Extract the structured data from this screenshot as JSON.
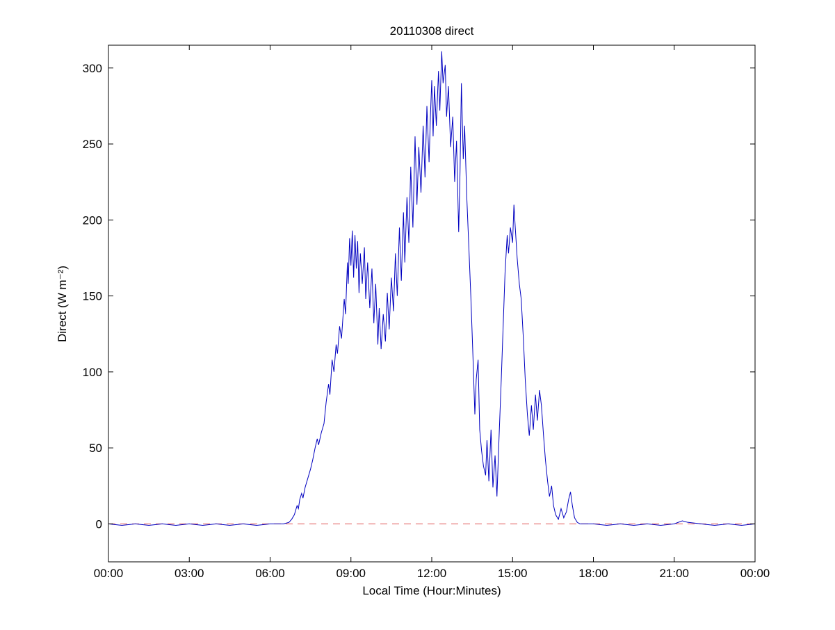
{
  "chart_data": {
    "type": "line",
    "title": "20110308 direct",
    "xlabel": "Local Time (Hour:Minutes)",
    "ylabel": "Direct (W m⁻²)",
    "xlim": [
      0,
      24
    ],
    "ylim": [
      -25,
      315
    ],
    "x_ticks": [
      0,
      3,
      6,
      9,
      12,
      15,
      18,
      21,
      24
    ],
    "x_tick_labels": [
      "00:00",
      "03:00",
      "06:00",
      "09:00",
      "12:00",
      "15:00",
      "18:00",
      "21:00",
      "00:00"
    ],
    "y_ticks": [
      0,
      50,
      100,
      150,
      200,
      250,
      300
    ],
    "y_tick_labels": [
      "0",
      "50",
      "100",
      "150",
      "200",
      "250",
      "300"
    ],
    "grid": false,
    "legend": "none",
    "series": [
      {
        "name": "zero-reference",
        "color": "#e05555",
        "dash": true,
        "points": [
          [
            0,
            0
          ],
          [
            24,
            0
          ]
        ]
      },
      {
        "name": "direct-irradiance",
        "color": "#0000c0",
        "dash": false,
        "points": [
          [
            0,
            0
          ],
          [
            0.5,
            -1
          ],
          [
            1,
            0
          ],
          [
            1.5,
            -1
          ],
          [
            2,
            0
          ],
          [
            2.5,
            -1
          ],
          [
            3,
            0
          ],
          [
            3.5,
            -1
          ],
          [
            4,
            0
          ],
          [
            4.5,
            -1
          ],
          [
            5,
            0
          ],
          [
            5.5,
            -1
          ],
          [
            6,
            0
          ],
          [
            6.5,
            0
          ],
          [
            6.7,
            1
          ],
          [
            6.8,
            3
          ],
          [
            6.9,
            6
          ],
          [
            7.0,
            12
          ],
          [
            7.05,
            10
          ],
          [
            7.1,
            16
          ],
          [
            7.17,
            20
          ],
          [
            7.22,
            17
          ],
          [
            7.3,
            24
          ],
          [
            7.4,
            30
          ],
          [
            7.5,
            36
          ],
          [
            7.58,
            42
          ],
          [
            7.67,
            50
          ],
          [
            7.75,
            56
          ],
          [
            7.8,
            52
          ],
          [
            7.9,
            60
          ],
          [
            8.0,
            66
          ],
          [
            8.08,
            80
          ],
          [
            8.17,
            92
          ],
          [
            8.22,
            85
          ],
          [
            8.3,
            108
          ],
          [
            8.37,
            100
          ],
          [
            8.45,
            118
          ],
          [
            8.5,
            112
          ],
          [
            8.58,
            130
          ],
          [
            8.65,
            122
          ],
          [
            8.75,
            148
          ],
          [
            8.8,
            138
          ],
          [
            8.87,
            172
          ],
          [
            8.9,
            158
          ],
          [
            8.95,
            188
          ],
          [
            9.0,
            170
          ],
          [
            9.05,
            193
          ],
          [
            9.1,
            162
          ],
          [
            9.15,
            190
          ],
          [
            9.2,
            168
          ],
          [
            9.25,
            186
          ],
          [
            9.3,
            152
          ],
          [
            9.35,
            178
          ],
          [
            9.42,
            158
          ],
          [
            9.5,
            182
          ],
          [
            9.55,
            148
          ],
          [
            9.62,
            172
          ],
          [
            9.7,
            142
          ],
          [
            9.78,
            168
          ],
          [
            9.85,
            132
          ],
          [
            9.92,
            158
          ],
          [
            10.0,
            118
          ],
          [
            10.05,
            142
          ],
          [
            10.12,
            115
          ],
          [
            10.2,
            138
          ],
          [
            10.28,
            120
          ],
          [
            10.35,
            152
          ],
          [
            10.42,
            128
          ],
          [
            10.5,
            162
          ],
          [
            10.58,
            140
          ],
          [
            10.65,
            178
          ],
          [
            10.72,
            150
          ],
          [
            10.8,
            195
          ],
          [
            10.87,
            160
          ],
          [
            10.95,
            205
          ],
          [
            11.0,
            172
          ],
          [
            11.08,
            215
          ],
          [
            11.15,
            185
          ],
          [
            11.22,
            235
          ],
          [
            11.3,
            195
          ],
          [
            11.38,
            255
          ],
          [
            11.45,
            210
          ],
          [
            11.52,
            248
          ],
          [
            11.6,
            218
          ],
          [
            11.68,
            262
          ],
          [
            11.75,
            228
          ],
          [
            11.82,
            275
          ],
          [
            11.9,
            238
          ],
          [
            11.95,
            268
          ],
          [
            12.0,
            292
          ],
          [
            12.05,
            255
          ],
          [
            12.1,
            288
          ],
          [
            12.17,
            262
          ],
          [
            12.25,
            298
          ],
          [
            12.3,
            272
          ],
          [
            12.37,
            311
          ],
          [
            12.42,
            290
          ],
          [
            12.5,
            302
          ],
          [
            12.55,
            268
          ],
          [
            12.62,
            288
          ],
          [
            12.7,
            248
          ],
          [
            12.78,
            268
          ],
          [
            12.85,
            225
          ],
          [
            12.92,
            252
          ],
          [
            13.0,
            192
          ],
          [
            13.05,
            232
          ],
          [
            13.1,
            290
          ],
          [
            13.17,
            240
          ],
          [
            13.22,
            262
          ],
          [
            13.3,
            215
          ],
          [
            13.37,
            185
          ],
          [
            13.45,
            150
          ],
          [
            13.52,
            115
          ],
          [
            13.6,
            72
          ],
          [
            13.65,
            95
          ],
          [
            13.72,
            108
          ],
          [
            13.78,
            62
          ],
          [
            13.85,
            48
          ],
          [
            13.92,
            38
          ],
          [
            14.0,
            32
          ],
          [
            14.05,
            55
          ],
          [
            14.12,
            28
          ],
          [
            14.2,
            62
          ],
          [
            14.27,
            24
          ],
          [
            14.35,
            45
          ],
          [
            14.42,
            18
          ],
          [
            14.5,
            58
          ],
          [
            14.58,
            95
          ],
          [
            14.65,
            130
          ],
          [
            14.72,
            165
          ],
          [
            14.8,
            190
          ],
          [
            14.85,
            178
          ],
          [
            14.92,
            195
          ],
          [
            15.0,
            185
          ],
          [
            15.05,
            210
          ],
          [
            15.1,
            195
          ],
          [
            15.17,
            175
          ],
          [
            15.25,
            158
          ],
          [
            15.32,
            148
          ],
          [
            15.4,
            122
          ],
          [
            15.47,
            95
          ],
          [
            15.55,
            72
          ],
          [
            15.62,
            58
          ],
          [
            15.7,
            78
          ],
          [
            15.77,
            62
          ],
          [
            15.85,
            85
          ],
          [
            15.92,
            68
          ],
          [
            16.0,
            88
          ],
          [
            16.07,
            78
          ],
          [
            16.15,
            58
          ],
          [
            16.22,
            42
          ],
          [
            16.3,
            28
          ],
          [
            16.37,
            18
          ],
          [
            16.45,
            25
          ],
          [
            16.52,
            12
          ],
          [
            16.6,
            6
          ],
          [
            16.7,
            3
          ],
          [
            16.8,
            10
          ],
          [
            16.9,
            4
          ],
          [
            17.0,
            8
          ],
          [
            17.08,
            16
          ],
          [
            17.15,
            21
          ],
          [
            17.22,
            12
          ],
          [
            17.3,
            4
          ],
          [
            17.4,
            1
          ],
          [
            17.5,
            0
          ],
          [
            18,
            0
          ],
          [
            18.5,
            -1
          ],
          [
            19,
            0
          ],
          [
            19.5,
            -1
          ],
          [
            20,
            0
          ],
          [
            20.5,
            -1
          ],
          [
            21,
            0
          ],
          [
            21.3,
            2
          ],
          [
            21.5,
            1
          ],
          [
            22,
            0
          ],
          [
            22.5,
            -1
          ],
          [
            23,
            0
          ],
          [
            23.5,
            -1
          ],
          [
            24,
            0
          ]
        ]
      }
    ]
  }
}
